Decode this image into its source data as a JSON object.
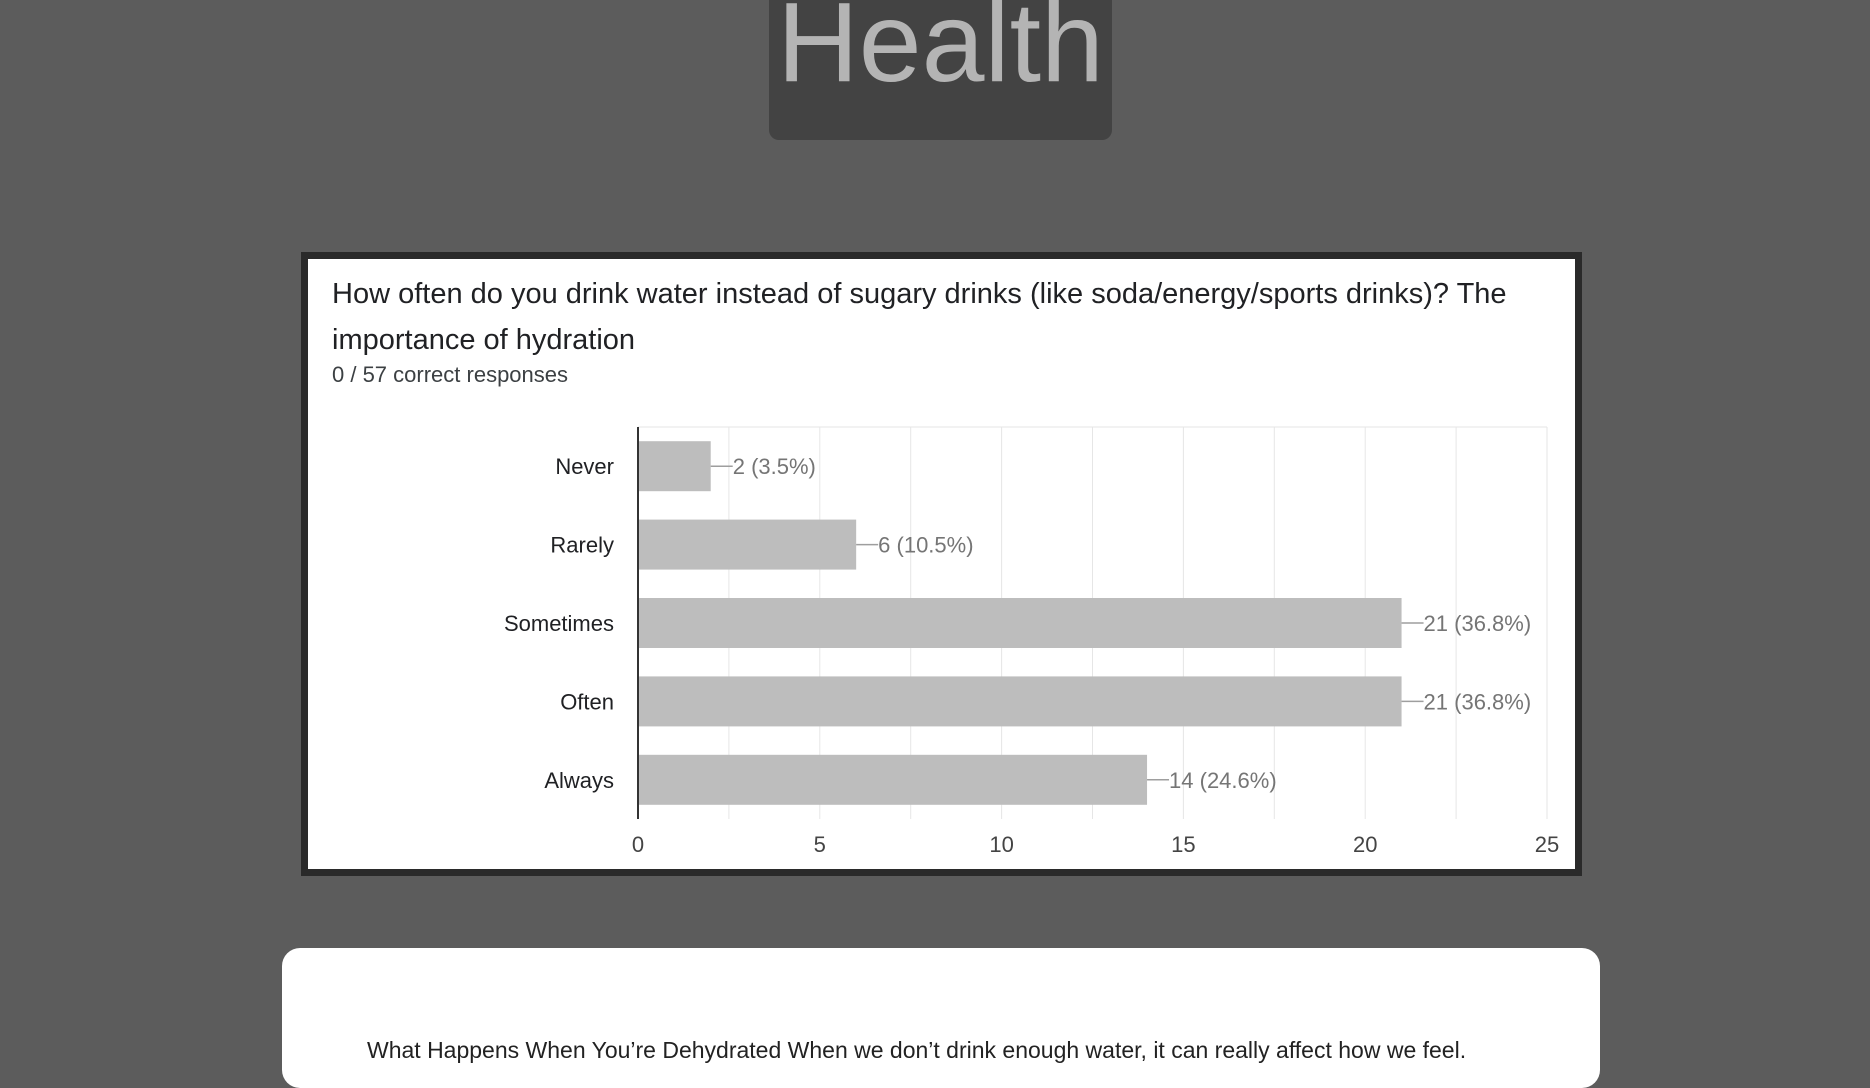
{
  "page": {
    "title": "Health",
    "article_text": "What Happens When You’re Dehydrated When we don’t drink enough water, it can really affect how we feel."
  },
  "colors": {
    "background": "#5c5c5c",
    "title_box": "#434343",
    "bar": "#bdbdbd"
  },
  "question": {
    "title": "How often do you drink water instead of sugary drinks (like soda/energy/sports drinks)? The importance of hydration",
    "subtitle": "0 / 57 correct responses"
  },
  "chart_data": {
    "type": "bar",
    "orientation": "horizontal",
    "categories": [
      "Never",
      "Rarely",
      "Sometimes",
      "Often",
      "Always"
    ],
    "values": [
      2,
      6,
      21,
      21,
      14
    ],
    "data_labels": [
      "2 (3.5%)",
      "6 (10.5%)",
      "21 (36.8%)",
      "21 (36.8%)",
      "14 (24.6%)"
    ],
    "xlim": [
      0,
      25
    ],
    "xticks": [
      "0",
      "5",
      "10",
      "15",
      "20",
      "25"
    ],
    "grid": true
  }
}
